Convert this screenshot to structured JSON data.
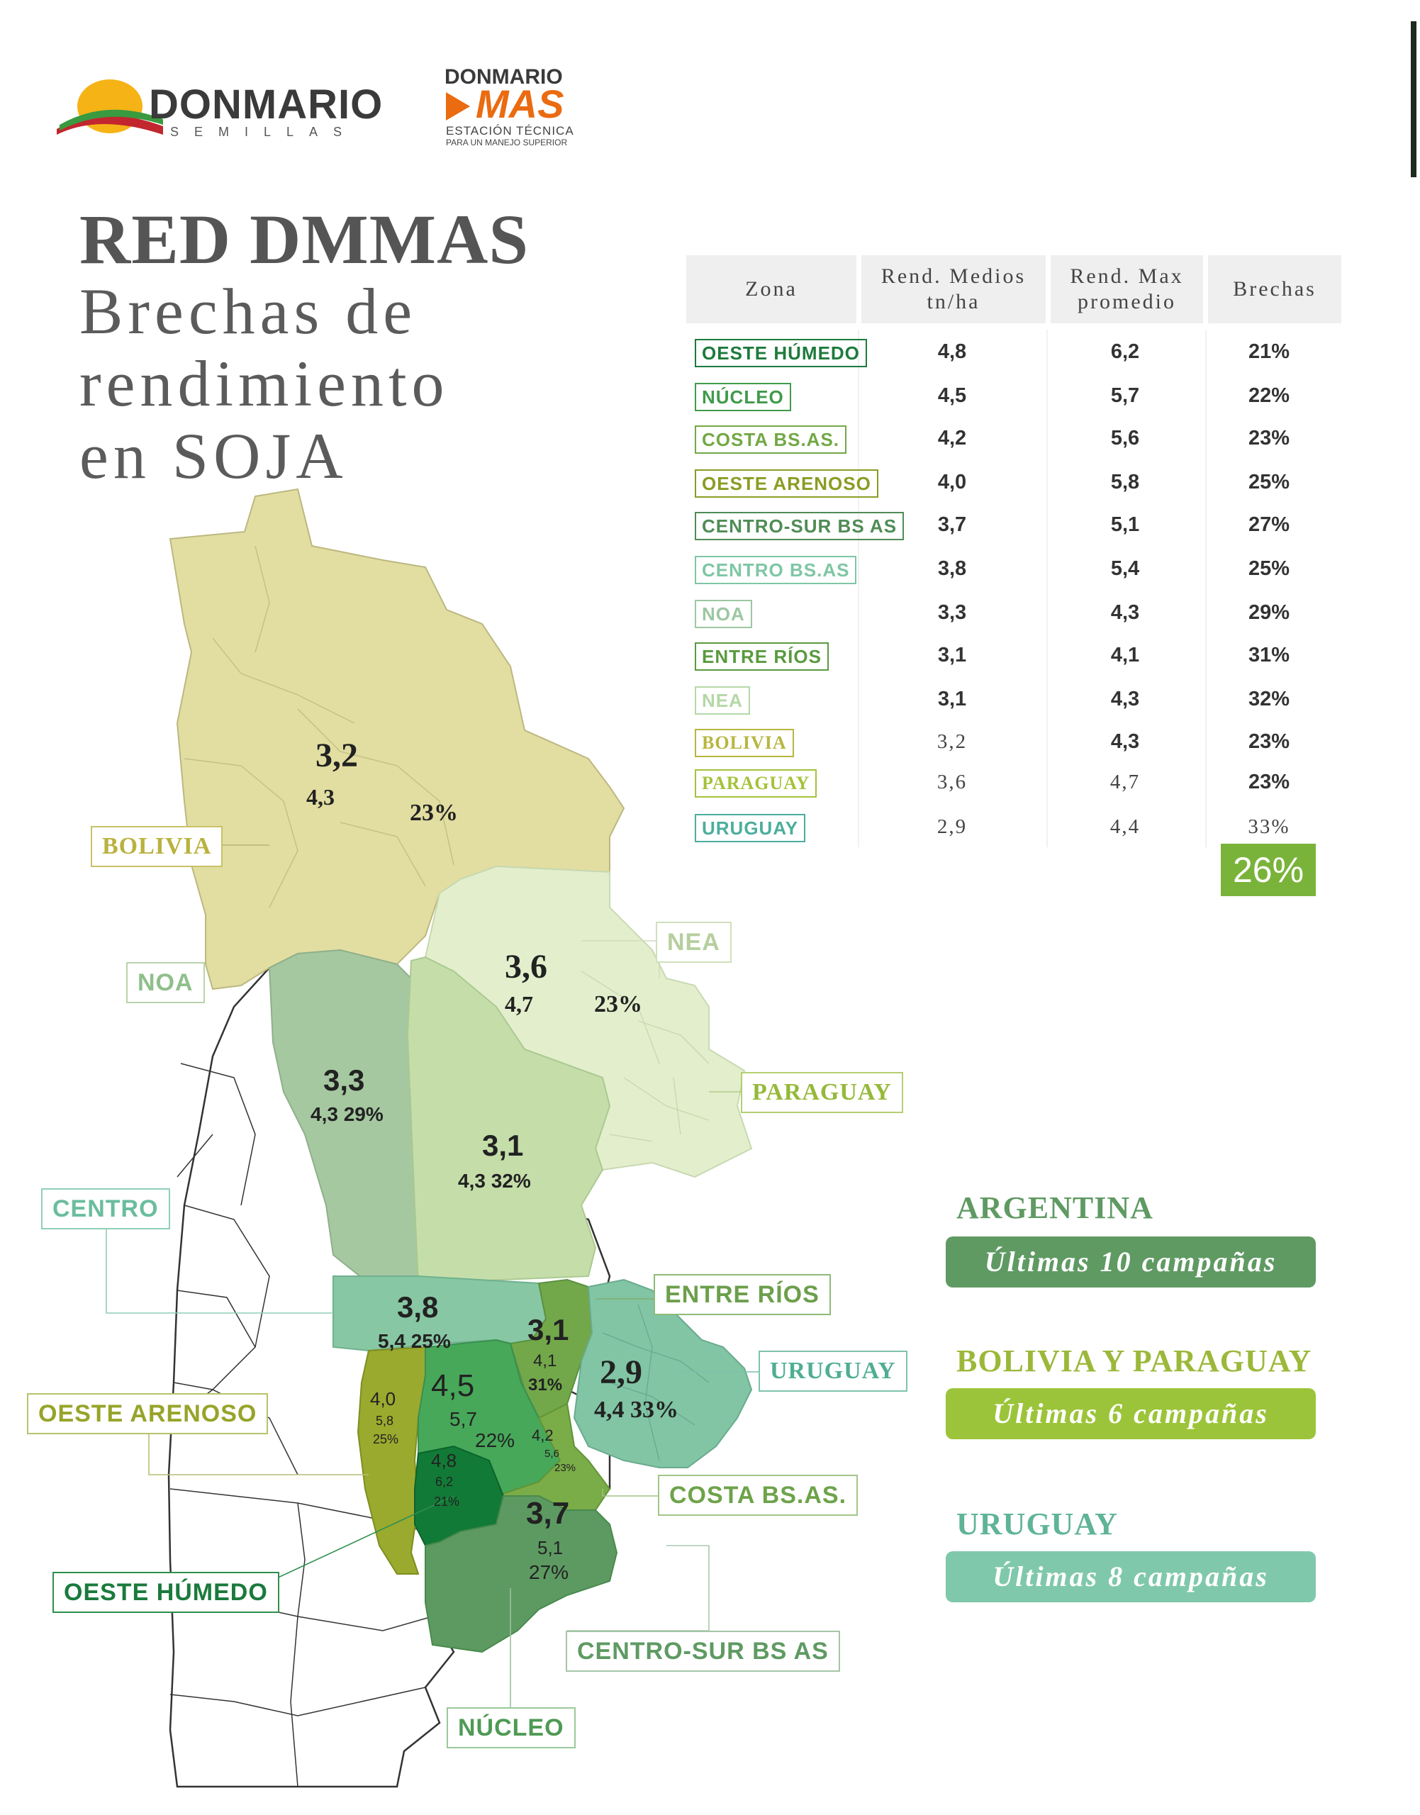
{
  "logos": {
    "donmario": {
      "name": "DONMARIO",
      "sub": "SEMILLAS"
    },
    "donmario_mas": {
      "top": "DONMARIO",
      "mas": "MAS",
      "sub1": "ESTACIÓN TÉCNICA",
      "sub2": "PARA UN MANEJO SUPERIOR"
    }
  },
  "title": {
    "main": "RED DMMAS",
    "line1": "Brechas de",
    "line2": "rendimiento",
    "line3": "en SOJA"
  },
  "table": {
    "headers": {
      "zona": "Zona",
      "rend_medios": "Rend. Medios tn/ha",
      "rend_max": "Rend. Max promedio",
      "brechas": "Brechas"
    },
    "rows": [
      {
        "zona": "OESTE HÚMEDO",
        "medios": "4,8",
        "max": "6,2",
        "brecha": "21%",
        "color": "#1e7a3c"
      },
      {
        "zona": "NÚCLEO",
        "medios": "4,5",
        "max": "5,7",
        "brecha": "22%",
        "color": "#3f9b4a"
      },
      {
        "zona": "COSTA BS.AS.",
        "medios": "4,2",
        "max": "5,6",
        "brecha": "23%",
        "color": "#72a845"
      },
      {
        "zona": "OESTE ARENOSO",
        "medios": "4,0",
        "max": "5,8",
        "brecha": "25%",
        "color": "#8b9c23"
      },
      {
        "zona": "CENTRO-SUR BS AS",
        "medios": "3,7",
        "max": "5,1",
        "brecha": "27%",
        "color": "#4f8c55"
      },
      {
        "zona": "CENTRO BS.AS",
        "medios": "3,8",
        "max": "5,4",
        "brecha": "25%",
        "color": "#7fc6a5"
      },
      {
        "zona": "NOA",
        "medios": "3,3",
        "max": "4,3",
        "brecha": "29%",
        "color": "#9cc7a2"
      },
      {
        "zona": "ENTRE RÍOS",
        "medios": "3,1",
        "max": "4,1",
        "brecha": "31%",
        "color": "#5a9a3e"
      },
      {
        "zona": "NEA",
        "medios": "3,1",
        "max": "4,3",
        "brecha": "32%",
        "color": "#b4d8a6"
      },
      {
        "zona": "BOLIVIA",
        "medios": "3,2",
        "max": "4,3",
        "brecha": "23%",
        "color": "#b8b640"
      },
      {
        "zona": "PARAGUAY",
        "medios": "3,6",
        "max": "4,7",
        "brecha": "23%",
        "color": "#a4c23a"
      },
      {
        "zona": "URUGUAY",
        "medios": "2,9",
        "max": "4,4",
        "brecha": "33%",
        "color": "#4bae9c"
      }
    ],
    "average": "26%"
  },
  "map": {
    "labels": {
      "bolivia": "BOLIVIA",
      "noa": "NOA",
      "nea": "NEA",
      "paraguay": "PARAGUAY",
      "centro": "CENTRO",
      "entre_rios": "ENTRE RÍOS",
      "uruguay": "URUGUAY",
      "oeste_arenoso": "OESTE ARENOSO",
      "costa": "COSTA BS.AS.",
      "oeste_humedo": "OESTE HÚMEDO",
      "centro_sur": "CENTRO-SUR BS AS",
      "nucleo": "NÚCLEO"
    },
    "values": {
      "bolivia": {
        "medio": "3,2",
        "max": "4,3",
        "brecha": "23%"
      },
      "paraguay": {
        "medio": "3,6",
        "max": "4,7",
        "brecha": "23%"
      },
      "noa": {
        "medio": "3,3",
        "max_brecha": "4,3 29%"
      },
      "nea": {
        "medio": "3,1",
        "max_brecha": "4,3 32%"
      },
      "centro": {
        "medio": "3,8",
        "max_brecha": "5,4 25%"
      },
      "entre_rios": {
        "medio": "3,1",
        "max": "4,1",
        "brecha": "31%"
      },
      "uruguay": {
        "medio": "2,9",
        "max_brecha": "4,4 33%"
      },
      "oeste_arenoso": {
        "medio": "4,0",
        "max": "5,8",
        "brecha": "25%"
      },
      "nucleo": {
        "medio": "4,5",
        "max": "5,7",
        "brecha": "22%"
      },
      "costa": {
        "medio": "4,2",
        "max": "5,6",
        "brecha": "23%"
      },
      "oeste_humedo": {
        "medio": "4,8",
        "max": "6,2",
        "brecha": "21%"
      },
      "centro_sur": {
        "medio": "3,7",
        "max": "5,1",
        "brecha": "27%"
      }
    }
  },
  "legend": [
    {
      "title": "ARGENTINA",
      "box": "Últimas 10 campañas",
      "color": "#5f9a63",
      "title_color": "#5f9a63"
    },
    {
      "title": "BOLIVIA Y PARAGUAY",
      "box": "Últimas 6 campañas",
      "color": "#9cc43a",
      "title_color": "#9cb83a"
    },
    {
      "title": "URUGUAY",
      "box": "Últimas 8 campañas",
      "color": "#80c8ac",
      "title_color": "#5fb498"
    }
  ]
}
